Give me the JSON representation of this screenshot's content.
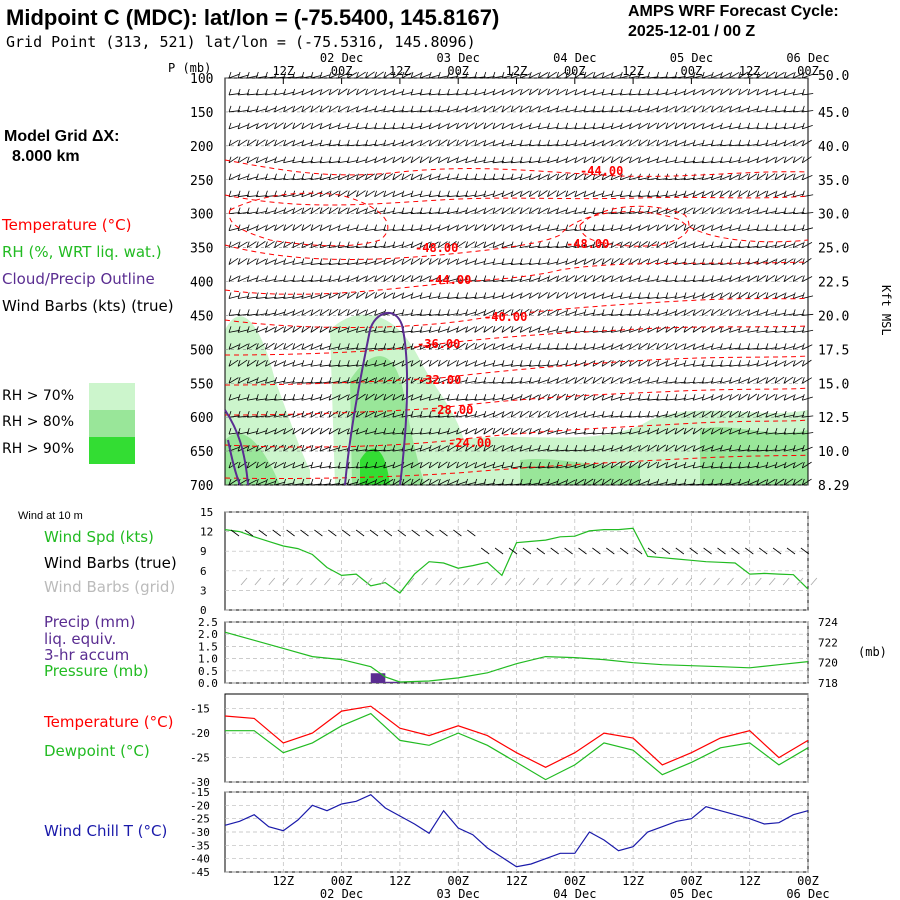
{
  "header": {
    "title": "Midpoint C (MDC):  lat/lon = (-75.5400, 145.8167)",
    "subtitle": "Grid Point (313, 521) lat/lon = (-75.5316, 145.8096)",
    "cycle_line1": "AMPS WRF Forecast Cycle:",
    "cycle_line2": "2025-12-01 / 00  Z"
  },
  "left_panel": {
    "grid_label": "Model Grid ΔX:",
    "grid_value": "8.000 km",
    "legend_temperature": "Temperature (°C)",
    "legend_rh": "RH (%, WRT liq. wat.)",
    "legend_cloud": "Cloud/Precip Outline",
    "legend_wind": "Wind Barbs (kts) (true)",
    "rh70": "RH > 70%",
    "rh80": "RH > 80%",
    "rh90": "RH > 90%",
    "wind10_title": "Wind at 10 m",
    "wind_spd": "Wind Spd (kts)",
    "wind_barbs_true": "Wind Barbs (true)",
    "wind_barbs_grid": "Wind Barbs (grid)",
    "precip1": "Precip (mm)",
    "precip2": "liq. equiv.",
    "precip3": "3-hr accum",
    "pressure": "Pressure (mb)",
    "temperature": "Temperature (°C)",
    "dewpoint": "Dewpoint (°C)",
    "windchill": "Wind Chill T (°C)"
  },
  "colors": {
    "temperature": "#ff0000",
    "green": "#22bb22",
    "cloud": "#5a2d91",
    "windchill": "#1a1aaa",
    "rh70": "#ccf5cc",
    "rh80": "#99e699",
    "rh90": "#33dd33",
    "grid": "#bbbbbb"
  },
  "chart_data": [
    {
      "type": "line",
      "name": "vertical cross-section",
      "xlabel": "",
      "ylabel": "P (mb)",
      "ylabel_right": "Kft MSL",
      "x_ticks_top": [
        "12Z",
        "00Z",
        "12Z",
        "00Z",
        "12Z",
        "00Z",
        "12Z",
        "00Z",
        "12Z",
        "00Z"
      ],
      "date_ticks_top": [
        "02 Dec",
        "03 Dec",
        "04 Dec",
        "05 Dec",
        "06 Dec"
      ],
      "p_ticks": [
        100,
        150,
        200,
        250,
        300,
        350,
        400,
        450,
        500,
        550,
        600,
        650,
        700
      ],
      "kft_ticks": [
        "50.0",
        "45.0",
        "40.0",
        "35.0",
        "30.0",
        "25.0",
        "22.5",
        "20.0",
        "17.5",
        "15.0",
        "12.5",
        "10.0",
        "8.29"
      ],
      "temperature_labels": [
        "-44.00",
        "-48.00",
        "-48.00",
        "-44.00",
        "-40.00",
        "-36.00",
        "-32.00",
        "-28.00",
        "-24.00"
      ]
    },
    {
      "type": "line",
      "name": "10 m wind speed",
      "ylim": [
        0,
        15
      ],
      "y_ticks": [
        0,
        3,
        6,
        9,
        12,
        15
      ],
      "x": [
        0,
        3,
        6,
        9,
        12,
        15,
        18,
        21,
        24,
        27,
        30,
        33,
        36,
        39,
        42,
        45,
        48,
        51,
        54,
        57,
        60,
        63,
        66,
        69,
        72,
        75,
        78,
        81,
        84,
        87,
        90,
        93,
        96,
        99,
        102,
        105,
        108,
        111,
        114,
        117,
        120
      ],
      "values": [
        12.3,
        12,
        11.2,
        10.5,
        9.8,
        9.4,
        8.5,
        6.5,
        5.3,
        5.5,
        3.7,
        4.2,
        2.6,
        5.5,
        7.4,
        7.2,
        6.4,
        6.8,
        7.3,
        5.3,
        10.3,
        10.5,
        10.7,
        11.2,
        11.3,
        12.1,
        12.3,
        12.3,
        12.5,
        8.2,
        8.0,
        7.8,
        7.6,
        7.4,
        7.3,
        7.2,
        5.5,
        5.6,
        5.5,
        5.4,
        3.2
      ]
    },
    {
      "type": "bar",
      "name": "3-hr precip",
      "ylim": [
        0,
        2.5
      ],
      "y_ticks": [
        "0.0",
        "0.5",
        "1.0",
        "1.5",
        "2.0",
        "2.5"
      ],
      "bars": [
        {
          "x": 30,
          "value": 0.4
        },
        {
          "x": 33,
          "value": 0.05
        }
      ]
    },
    {
      "type": "line",
      "name": "pressure",
      "ylim": [
        718,
        724
      ],
      "y_ticks": [
        718,
        720,
        722,
        724
      ],
      "y_unit": "(mb)",
      "x": [
        0,
        6,
        12,
        18,
        24,
        30,
        33,
        36,
        42,
        48,
        54,
        60,
        66,
        72,
        78,
        84,
        90,
        96,
        102,
        108,
        114,
        120
      ],
      "values": [
        723.0,
        722.2,
        721.4,
        720.6,
        720.3,
        719.6,
        718.6,
        718.1,
        718.2,
        718.5,
        719.0,
        719.9,
        720.6,
        720.5,
        720.3,
        720.0,
        719.8,
        719.7,
        719.6,
        719.5,
        719.8,
        720.1
      ]
    },
    {
      "type": "line",
      "name": "temperature and dewpoint",
      "ylim": [
        -30,
        -12
      ],
      "y_ticks": [
        -30,
        -25,
        -20,
        -15
      ],
      "x": [
        0,
        6,
        12,
        18,
        24,
        30,
        36,
        42,
        48,
        54,
        60,
        66,
        72,
        78,
        84,
        90,
        96,
        102,
        108,
        114,
        120
      ],
      "series": [
        {
          "values": [
            -16.5,
            -17.0,
            -22.0,
            -20.0,
            -15.5,
            -14.5,
            -19.0,
            -20.5,
            -18.5,
            -20.5,
            -24.0,
            -27.0,
            -24.0,
            -20.0,
            -21.0,
            -26.5,
            -24.0,
            -21.0,
            -19.5,
            -25.0,
            -21.5
          ]
        },
        {
          "values": [
            -19.5,
            -19.5,
            -24.0,
            -22.0,
            -18.5,
            -16.0,
            -21.5,
            -22.5,
            -20.0,
            -22.5,
            -26.0,
            -29.5,
            -26.5,
            -22.0,
            -23.5,
            -28.5,
            -26.0,
            -23.0,
            -22.0,
            -26.5,
            -23.0
          ]
        }
      ]
    },
    {
      "type": "line",
      "name": "wind chill",
      "ylim": [
        -45,
        -15
      ],
      "y_ticks": [
        -45,
        -40,
        -35,
        -30,
        -25,
        -20,
        -15
      ],
      "x": [
        0,
        3,
        6,
        9,
        12,
        15,
        18,
        21,
        24,
        27,
        30,
        33,
        36,
        39,
        42,
        45,
        48,
        51,
        54,
        57,
        60,
        63,
        66,
        69,
        72,
        75,
        78,
        81,
        84,
        87,
        90,
        93,
        96,
        99,
        102,
        105,
        108,
        111,
        114,
        117,
        120
      ],
      "values": [
        -27.5,
        -26,
        -23.5,
        -28,
        -29.5,
        -25.5,
        -20,
        -22,
        -19.5,
        -18.5,
        -16,
        -21,
        -24,
        -27,
        -30.5,
        -22,
        -28.5,
        -31,
        -36,
        -39.5,
        -43,
        -42,
        -40,
        -38,
        -38,
        -30,
        -33,
        -37,
        -35.5,
        -30,
        -28,
        -26,
        -25,
        -20.5,
        -22,
        -23.5,
        -25,
        -27,
        -26.5,
        -23.5,
        -22
      ]
    }
  ],
  "bottom_axis": {
    "x_ticks": [
      "12Z",
      "00Z",
      "12Z",
      "00Z",
      "12Z",
      "00Z",
      "12Z",
      "00Z",
      "12Z",
      "00Z"
    ],
    "dates": [
      "02 Dec",
      "03 Dec",
      "04 Dec",
      "05 Dec",
      "06 Dec"
    ]
  }
}
